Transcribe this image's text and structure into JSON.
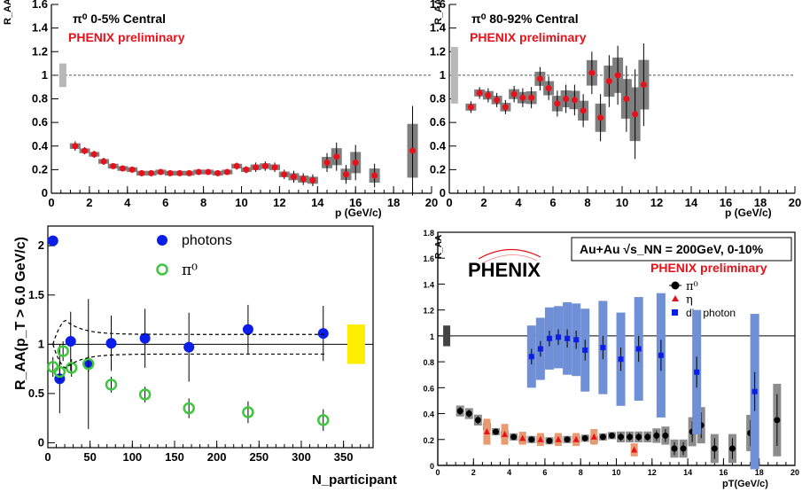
{
  "colors": {
    "red": "#e8111a",
    "gray_box": "#7f7f7f",
    "light_gray_box": "#b8b8b8",
    "blue": "#0b1ee8",
    "green": "#3ec63e",
    "yellow": "#ffee00",
    "blue_band": "#6f8fd6",
    "orange_band": "#e89a70"
  },
  "chart_data": [
    {
      "type": "scatter",
      "panel": "top-left",
      "title": "π⁰ 0-5% Central",
      "subtitle": "PHENIX preliminary",
      "ylabel": "R_AA",
      "xlabel": "p (GeV/c)",
      "xlim": [
        0,
        20
      ],
      "ylim": [
        0,
        1.6
      ],
      "xticks": [
        "0",
        "2",
        "4",
        "6",
        "8",
        "10",
        "12",
        "14",
        "16",
        "18",
        "20"
      ],
      "yticks": [
        "0",
        "0.2",
        "0.4",
        "0.6",
        "0.8",
        "1",
        "1.2",
        "1.4",
        "1.6"
      ],
      "reference_line": 1,
      "norm_box": {
        "x": 0.6,
        "lo": 0.9,
        "hi": 1.1
      },
      "series": [
        {
          "x": [
            1.25,
            1.75,
            2.25,
            2.75,
            3.25,
            3.75,
            4.25,
            4.75,
            5.25,
            5.75,
            6.25,
            6.75,
            7.25,
            7.75,
            8.25,
            8.75,
            9.25,
            9.75,
            10.25,
            10.75,
            11.25,
            11.75,
            12.25,
            12.75,
            13.25,
            13.75,
            14.5,
            15.0,
            15.5,
            16.0,
            17.0,
            19.0
          ],
          "y": [
            0.4,
            0.36,
            0.33,
            0.27,
            0.23,
            0.21,
            0.2,
            0.17,
            0.17,
            0.18,
            0.17,
            0.17,
            0.17,
            0.18,
            0.18,
            0.17,
            0.18,
            0.23,
            0.2,
            0.22,
            0.23,
            0.22,
            0.16,
            0.14,
            0.12,
            0.11,
            0.26,
            0.31,
            0.16,
            0.26,
            0.15,
            0.36
          ],
          "err": [
            0.04,
            0.03,
            0.03,
            0.03,
            0.02,
            0.02,
            0.02,
            0.02,
            0.02,
            0.02,
            0.02,
            0.02,
            0.02,
            0.02,
            0.02,
            0.02,
            0.02,
            0.03,
            0.03,
            0.04,
            0.04,
            0.04,
            0.04,
            0.05,
            0.05,
            0.05,
            0.08,
            0.12,
            0.08,
            0.15,
            0.1,
            0.38
          ]
        }
      ]
    },
    {
      "type": "scatter",
      "panel": "top-right",
      "title": "π⁰ 80-92% Central",
      "subtitle": "PHENIX preliminary",
      "ylabel": "R_AA",
      "xlabel": "p (GeV/c)",
      "xlim": [
        0,
        20
      ],
      "ylim": [
        0,
        1.6
      ],
      "xticks": [
        "0",
        "2",
        "4",
        "6",
        "8",
        "10",
        "12",
        "14",
        "16",
        "18",
        "20"
      ],
      "yticks": [
        "0",
        "0.2",
        "0.4",
        "0.6",
        "0.8",
        "1",
        "1.2",
        "1.4",
        "1.6"
      ],
      "reference_line": 1,
      "norm_box": {
        "x": 0.3,
        "lo": 0.76,
        "hi": 1.24
      },
      "series": [
        {
          "x": [
            1.25,
            1.75,
            2.25,
            2.75,
            3.25,
            3.75,
            4.25,
            4.75,
            5.25,
            5.75,
            6.25,
            6.75,
            7.25,
            7.75,
            8.25,
            8.75,
            9.25,
            9.75,
            10.25,
            10.75,
            11.25
          ],
          "y": [
            0.73,
            0.85,
            0.83,
            0.79,
            0.73,
            0.84,
            0.81,
            0.81,
            0.97,
            0.89,
            0.76,
            0.8,
            0.79,
            0.7,
            1.02,
            0.64,
            0.95,
            1.0,
            0.8,
            0.67,
            0.92
          ],
          "err": [
            0.05,
            0.05,
            0.06,
            0.06,
            0.06,
            0.07,
            0.08,
            0.09,
            0.1,
            0.1,
            0.11,
            0.12,
            0.13,
            0.14,
            0.18,
            0.2,
            0.22,
            0.25,
            0.28,
            0.38,
            0.35
          ]
        }
      ]
    },
    {
      "type": "scatter",
      "panel": "bottom-left",
      "ylabel": "R_AA(p_T > 6.0 GeV/c)",
      "xlabel": "N_participant",
      "xlim": [
        0,
        385
      ],
      "ylim": [
        -0.05,
        2.2
      ],
      "xticks": [
        "0",
        "50",
        "100",
        "150",
        "200",
        "250",
        "300",
        "350"
      ],
      "yticks": [
        "0",
        "0.5",
        "1",
        "1.5",
        "2"
      ],
      "reference_line": 1,
      "legend": [
        "photons",
        "π⁰"
      ],
      "norm_box": {
        "x": 365,
        "lo": 0.8,
        "hi": 1.2
      },
      "series": [
        {
          "name": "photons",
          "x": [
            6,
            14,
            27,
            48,
            75,
            115,
            167,
            237,
            326
          ],
          "y": [
            2.05,
            0.65,
            1.03,
            0.8,
            1.01,
            1.06,
            0.97,
            1.15,
            1.11
          ],
          "err": [
            0.0,
            0.35,
            0.3,
            0.66,
            0.28,
            0.3,
            0.35,
            0.25,
            0.28
          ]
        },
        {
          "name": "π⁰",
          "x": [
            6,
            14,
            18,
            28,
            48,
            75,
            115,
            167,
            237,
            326
          ],
          "y": [
            0.77,
            0.72,
            0.93,
            0.76,
            0.8,
            0.59,
            0.49,
            0.35,
            0.31,
            0.23
          ],
          "err": [
            0.1,
            0.1,
            0.1,
            0.09,
            0.08,
            0.08,
            0.08,
            0.1,
            0.11,
            0.11
          ]
        }
      ]
    },
    {
      "type": "scatter",
      "panel": "bottom-right",
      "title": "Au+Au √s_NN = 200GeV, 0-10%",
      "subtitle": "PHENIX preliminary",
      "logo": "PHENIX",
      "ylabel": "R_AA",
      "xlabel": "pT(GeV/c)",
      "xlim": [
        0,
        20
      ],
      "ylim": [
        0,
        1.8
      ],
      "xticks": [
        "0",
        "2",
        "4",
        "6",
        "8",
        "10",
        "12",
        "14",
        "16",
        "18",
        "20"
      ],
      "yticks": [
        "0",
        "0.2",
        "0.4",
        "0.6",
        "0.8",
        "1",
        "1.2",
        "1.4",
        "1.6",
        "1.8"
      ],
      "reference_line": 1,
      "legend": [
        "π⁰",
        "η",
        "dir. photon"
      ],
      "series": [
        {
          "name": "π⁰",
          "x": [
            1.25,
            1.75,
            2.25,
            2.75,
            3.25,
            3.75,
            4.25,
            4.75,
            5.25,
            5.75,
            6.25,
            6.75,
            7.25,
            7.75,
            8.25,
            8.75,
            9.25,
            9.75,
            10.25,
            10.75,
            11.25,
            11.75,
            12.25,
            12.75,
            13.25,
            13.75,
            14.25,
            14.75,
            15.5,
            16.5,
            17.5,
            19.0
          ],
          "y": [
            0.42,
            0.4,
            0.35,
            0.3,
            0.26,
            0.24,
            0.22,
            0.2,
            0.2,
            0.2,
            0.19,
            0.2,
            0.2,
            0.2,
            0.21,
            0.2,
            0.22,
            0.23,
            0.22,
            0.22,
            0.22,
            0.22,
            0.23,
            0.23,
            0.13,
            0.13,
            0.26,
            0.31,
            0.13,
            0.13,
            0.25,
            0.35
          ],
          "err": [
            0.03,
            0.03,
            0.03,
            0.02,
            0.02,
            0.02,
            0.02,
            0.02,
            0.02,
            0.02,
            0.02,
            0.02,
            0.02,
            0.02,
            0.02,
            0.02,
            0.02,
            0.02,
            0.03,
            0.03,
            0.03,
            0.03,
            0.04,
            0.05,
            0.05,
            0.05,
            0.08,
            0.1,
            0.08,
            0.08,
            0.1,
            0.2
          ]
        },
        {
          "name": "η",
          "x": [
            2.75,
            3.75,
            4.75,
            5.75,
            6.75,
            7.75,
            8.75,
            11.0
          ],
          "y": [
            0.26,
            0.24,
            0.21,
            0.2,
            0.2,
            0.2,
            0.22,
            0.12
          ],
          "err": [
            0.1,
            0.08,
            0.05,
            0.05,
            0.05,
            0.05,
            0.06,
            0.05
          ]
        },
        {
          "name": "dir. photon",
          "x": [
            5.25,
            5.75,
            6.25,
            6.75,
            7.25,
            7.75,
            8.25,
            9.25,
            10.25,
            11.25,
            12.5,
            14.5,
            17.75
          ],
          "y": [
            0.84,
            0.9,
            0.98,
            0.99,
            0.98,
            0.97,
            0.89,
            0.91,
            0.82,
            0.9,
            0.85,
            0.72,
            0.57
          ],
          "err": [
            0.06,
            0.06,
            0.06,
            0.06,
            0.07,
            0.07,
            0.08,
            0.09,
            0.09,
            0.1,
            0.12,
            0.12,
            0.15
          ]
        }
      ]
    }
  ]
}
